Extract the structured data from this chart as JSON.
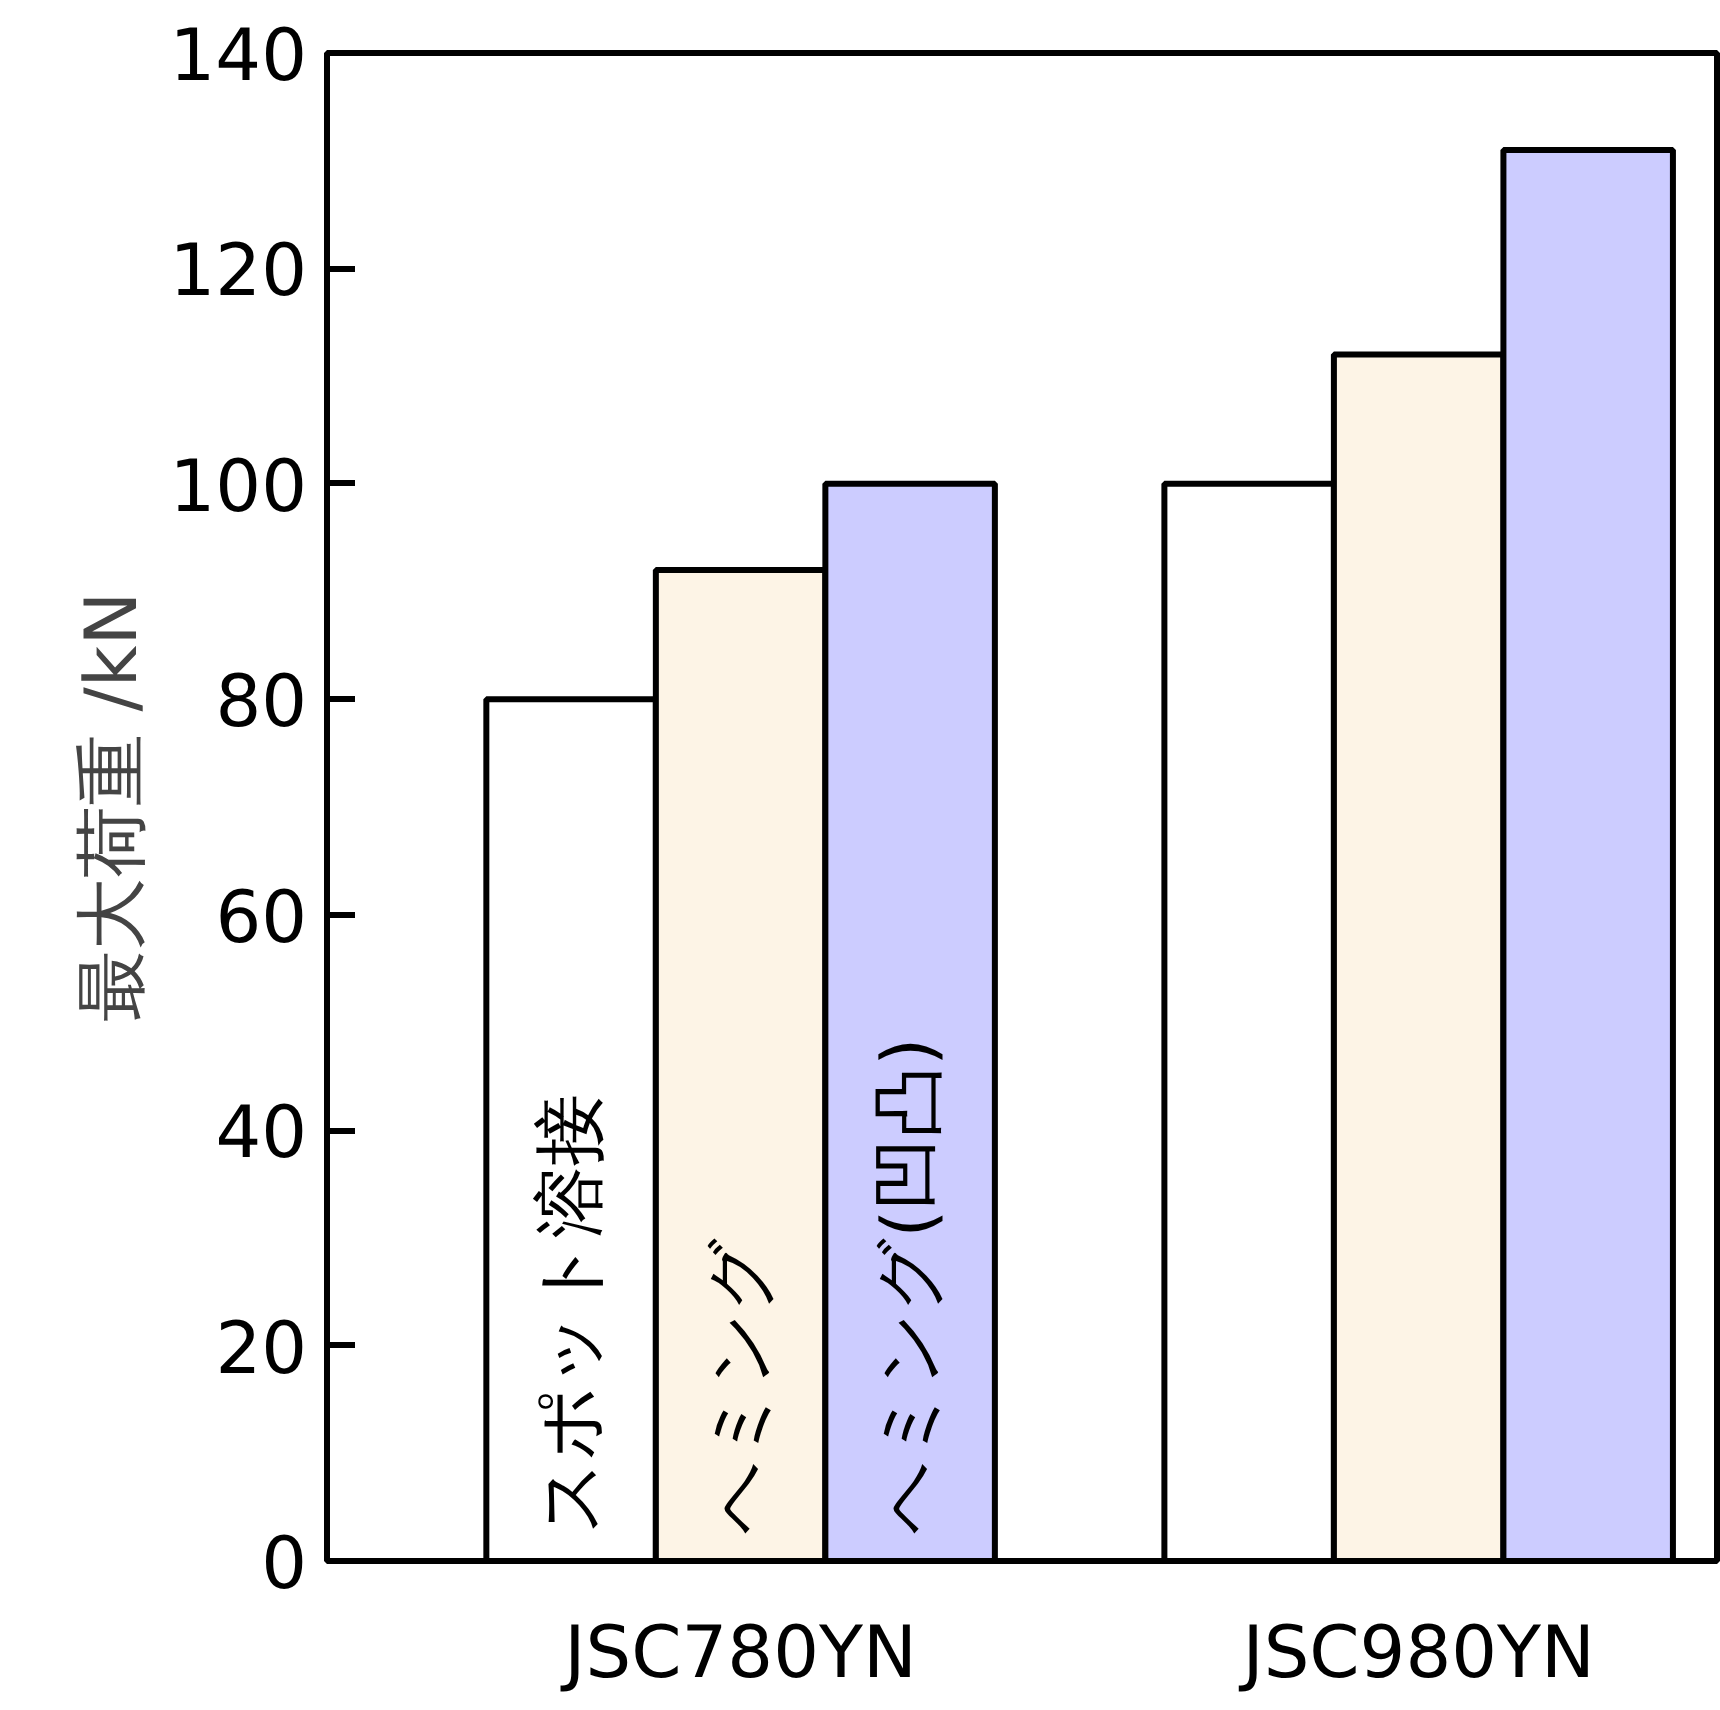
{
  "chart_data": {
    "type": "bar",
    "ylabel": "最大荷重 /kN",
    "categories": [
      "JSC780YN",
      "JSC980YN"
    ],
    "series": [
      {
        "name": "スポット溶接",
        "color": "#ffffff",
        "values": [
          80,
          100
        ]
      },
      {
        "name": "ヘミング",
        "color": "#fdf4e6",
        "values": [
          92,
          112
        ]
      },
      {
        "name": "ヘミング(凹凸)",
        "color": "#ccccff",
        "values": [
          100,
          131
        ]
      }
    ],
    "ylim": [
      0,
      140
    ],
    "yticks": [
      0,
      20,
      40,
      60,
      80,
      100,
      120,
      140
    ],
    "grid": false,
    "legend": false
  }
}
